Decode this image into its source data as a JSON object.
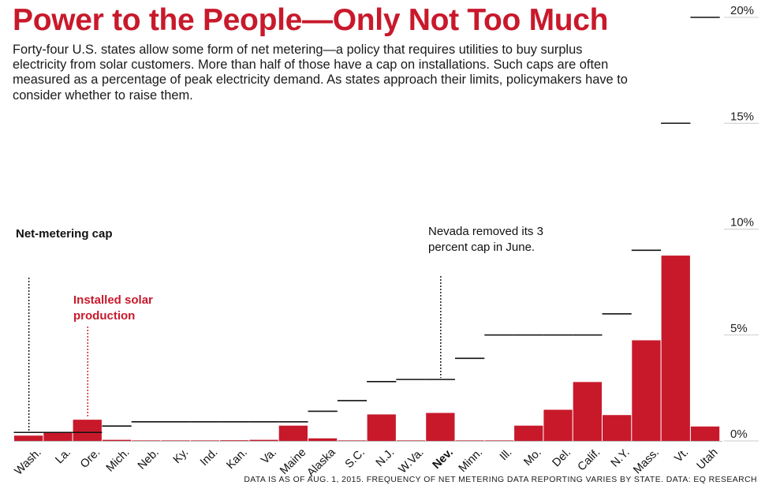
{
  "header": {
    "title": "Power to the People—Only Not Too Much",
    "subtitle": "Forty-four U.S. states allow some form of net metering—a policy that requires utilities to buy surplus electricity from solar customers. More than half of those have a cap on installations. Such caps are often measured as a percentage of peak electricity demand. As states approach their limits, policymakers have to consider whether to raise them."
  },
  "annotations": {
    "cap_label": "Net-metering cap",
    "solar_label": "Installed solar production",
    "nevada_note": "Nevada removed its 3 percent cap in June."
  },
  "footnote": "DATA IS AS OF AUG. 1, 2015. FREQUENCY OF NET METERING DATA REPORTING VARIES BY STATE. DATA: EQ RESEARCH",
  "colors": {
    "accent": "#c8192b",
    "line": "#111111",
    "grid": "#cccccc"
  },
  "chart_data": {
    "type": "bar",
    "categories": [
      "Wash.",
      "La.",
      "Ore.",
      "Mich.",
      "Neb.",
      "Ky.",
      "Ind.",
      "Kan.",
      "Va.",
      "Maine",
      "Alaska",
      "S.C.",
      "N.J.",
      "W.Va.",
      "Nev.",
      "Minn.",
      "Ill.",
      "Mo.",
      "Del.",
      "Calif.",
      "N.Y.",
      "Mass.",
      "Vt.",
      "Utah"
    ],
    "highlight": "Nev.",
    "series": [
      {
        "name": "Installed solar production",
        "values": [
          0.25,
          0.4,
          1.0,
          0.05,
          0.0,
          0.0,
          0.02,
          0.03,
          0.05,
          0.72,
          0.12,
          0.0,
          1.25,
          0.02,
          1.32,
          0.0,
          0.0,
          0.72,
          1.47,
          2.78,
          1.22,
          4.75,
          8.75,
          0.68
        ]
      },
      {
        "name": "Net-metering cap",
        "values": [
          0.4,
          0.4,
          0.4,
          0.7,
          0.9,
          0.9,
          0.9,
          0.9,
          0.9,
          0.9,
          1.4,
          1.9,
          2.8,
          2.9,
          2.9,
          3.9,
          5.0,
          5.0,
          5.0,
          5.0,
          6.0,
          9.0,
          15.0,
          20.0
        ]
      }
    ],
    "y_ticks": [
      "0%",
      "5%",
      "10%",
      "15%",
      "20%"
    ],
    "y_tick_values": [
      0,
      5,
      10,
      15,
      20
    ],
    "ylim": [
      0,
      20
    ],
    "grid": false,
    "y_axis_side": "right"
  }
}
